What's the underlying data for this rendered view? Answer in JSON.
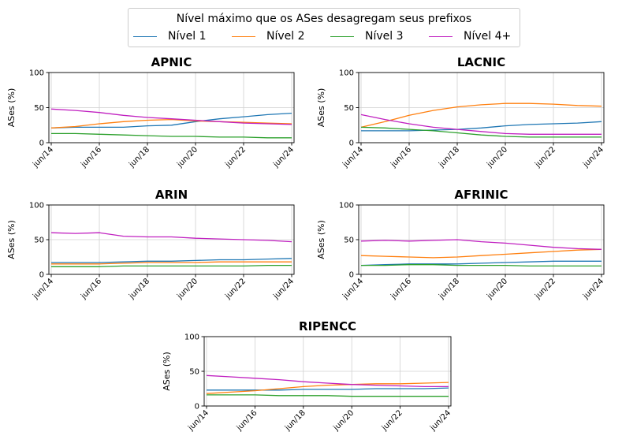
{
  "legend": {
    "title": "Nível máximo que os ASes desagregam seus prefixos",
    "items": [
      {
        "label": "Nível 1",
        "color": "#1f77b4"
      },
      {
        "label": "Nível 2",
        "color": "#ff7f0e"
      },
      {
        "label": "Nível 3",
        "color": "#2ca02c"
      },
      {
        "label": "Nível 4+",
        "color": "#c020c0"
      }
    ]
  },
  "chart_data": [
    {
      "type": "line",
      "title": "APNIC",
      "ylabel": "ASes (%)",
      "x": [
        "jun/14",
        "jun/15",
        "jun/16",
        "jun/17",
        "jun/18",
        "jun/19",
        "jun/20",
        "jun/21",
        "jun/22",
        "jun/23",
        "jun/24"
      ],
      "x_ticks": [
        "jun/14",
        "jun/16",
        "jun/18",
        "jun/20",
        "jun/22",
        "jun/24"
      ],
      "ylim": [
        0,
        100
      ],
      "y_ticks": [
        0,
        50,
        100
      ],
      "grid": true,
      "series": [
        {
          "name": "Nível 1",
          "values": [
            21,
            22,
            22,
            22,
            24,
            25,
            30,
            34,
            37,
            40,
            42
          ]
        },
        {
          "name": "Nível 2",
          "values": [
            21,
            23,
            27,
            30,
            32,
            33,
            31,
            30,
            29,
            28,
            27
          ]
        },
        {
          "name": "Nível 3",
          "values": [
            13,
            13,
            12,
            11,
            10,
            9,
            9,
            8,
            8,
            7,
            7
          ]
        },
        {
          "name": "Nível 4+",
          "values": [
            48,
            46,
            43,
            39,
            36,
            34,
            32,
            30,
            28,
            27,
            26
          ]
        }
      ]
    },
    {
      "type": "line",
      "title": "LACNIC",
      "ylabel": "ASes (%)",
      "x": [
        "jun/14",
        "jun/15",
        "jun/16",
        "jun/17",
        "jun/18",
        "jun/19",
        "jun/20",
        "jun/21",
        "jun/22",
        "jun/23",
        "jun/24"
      ],
      "x_ticks": [
        "jun/14",
        "jun/16",
        "jun/18",
        "jun/20",
        "jun/22",
        "jun/24"
      ],
      "ylim": [
        0,
        100
      ],
      "y_ticks": [
        0,
        50,
        100
      ],
      "grid": true,
      "series": [
        {
          "name": "Nível 1",
          "values": [
            17,
            17,
            17,
            18,
            19,
            21,
            24,
            26,
            27,
            28,
            30
          ]
        },
        {
          "name": "Nível 2",
          "values": [
            22,
            30,
            39,
            46,
            51,
            54,
            56,
            56,
            55,
            53,
            52
          ]
        },
        {
          "name": "Nível 3",
          "values": [
            22,
            21,
            19,
            17,
            14,
            11,
            9,
            8,
            8,
            8,
            8
          ]
        },
        {
          "name": "Nível 4+",
          "values": [
            40,
            33,
            27,
            22,
            19,
            16,
            13,
            12,
            12,
            12,
            12
          ]
        }
      ]
    },
    {
      "type": "line",
      "title": "ARIN",
      "ylabel": "ASes (%)",
      "x": [
        "jun/14",
        "jun/15",
        "jun/16",
        "jun/17",
        "jun/18",
        "jun/19",
        "jun/20",
        "jun/21",
        "jun/22",
        "jun/23",
        "jun/24"
      ],
      "x_ticks": [
        "jun/14",
        "jun/16",
        "jun/18",
        "jun/20",
        "jun/22",
        "jun/24"
      ],
      "ylim": [
        0,
        100
      ],
      "y_ticks": [
        0,
        50,
        100
      ],
      "grid": true,
      "series": [
        {
          "name": "Nível 1",
          "values": [
            17,
            17,
            17,
            18,
            19,
            19,
            20,
            21,
            21,
            22,
            23
          ]
        },
        {
          "name": "Nível 2",
          "values": [
            15,
            15,
            15,
            16,
            17,
            17,
            17,
            18,
            18,
            18,
            18
          ]
        },
        {
          "name": "Nível 3",
          "values": [
            11,
            11,
            11,
            12,
            12,
            12,
            12,
            12,
            12,
            13,
            13
          ]
        },
        {
          "name": "Nível 4+",
          "values": [
            60,
            59,
            60,
            55,
            54,
            54,
            52,
            51,
            50,
            49,
            47
          ]
        }
      ]
    },
    {
      "type": "line",
      "title": "AFRINIC",
      "ylabel": "ASes (%)",
      "x": [
        "jun/14",
        "jun/15",
        "jun/16",
        "jun/17",
        "jun/18",
        "jun/19",
        "jun/20",
        "jun/21",
        "jun/22",
        "jun/23",
        "jun/24"
      ],
      "x_ticks": [
        "jun/14",
        "jun/16",
        "jun/18",
        "jun/20",
        "jun/22",
        "jun/24"
      ],
      "ylim": [
        0,
        100
      ],
      "y_ticks": [
        0,
        50,
        100
      ],
      "grid": true,
      "series": [
        {
          "name": "Nível 1",
          "values": [
            13,
            14,
            15,
            15,
            15,
            16,
            17,
            18,
            19,
            19,
            19
          ]
        },
        {
          "name": "Nível 2",
          "values": [
            27,
            26,
            25,
            24,
            25,
            27,
            29,
            31,
            33,
            35,
            36
          ]
        },
        {
          "name": "Nível 3",
          "values": [
            13,
            13,
            14,
            14,
            13,
            13,
            13,
            12,
            12,
            12,
            12
          ]
        },
        {
          "name": "Nível 4+",
          "values": [
            48,
            49,
            48,
            49,
            50,
            47,
            45,
            42,
            39,
            37,
            36
          ]
        }
      ]
    },
    {
      "type": "line",
      "title": "RIPENCC",
      "ylabel": "ASes (%)",
      "x": [
        "jun/14",
        "jun/15",
        "jun/16",
        "jun/17",
        "jun/18",
        "jun/19",
        "jun/20",
        "jun/21",
        "jun/22",
        "jun/23",
        "jun/24"
      ],
      "x_ticks": [
        "jun/14",
        "jun/16",
        "jun/18",
        "jun/20",
        "jun/22",
        "jun/24"
      ],
      "ylim": [
        0,
        100
      ],
      "y_ticks": [
        0,
        50,
        100
      ],
      "grid": true,
      "series": [
        {
          "name": "Nível 1",
          "values": [
            23,
            23,
            23,
            23,
            24,
            24,
            24,
            25,
            25,
            25,
            26
          ]
        },
        {
          "name": "Nível 2",
          "values": [
            18,
            20,
            22,
            25,
            28,
            30,
            31,
            32,
            32,
            33,
            34
          ]
        },
        {
          "name": "Nível 3",
          "values": [
            16,
            16,
            16,
            15,
            15,
            15,
            14,
            14,
            14,
            14,
            14
          ]
        },
        {
          "name": "Nível 4+",
          "values": [
            44,
            42,
            40,
            38,
            35,
            33,
            31,
            30,
            29,
            28,
            28
          ]
        }
      ]
    }
  ]
}
